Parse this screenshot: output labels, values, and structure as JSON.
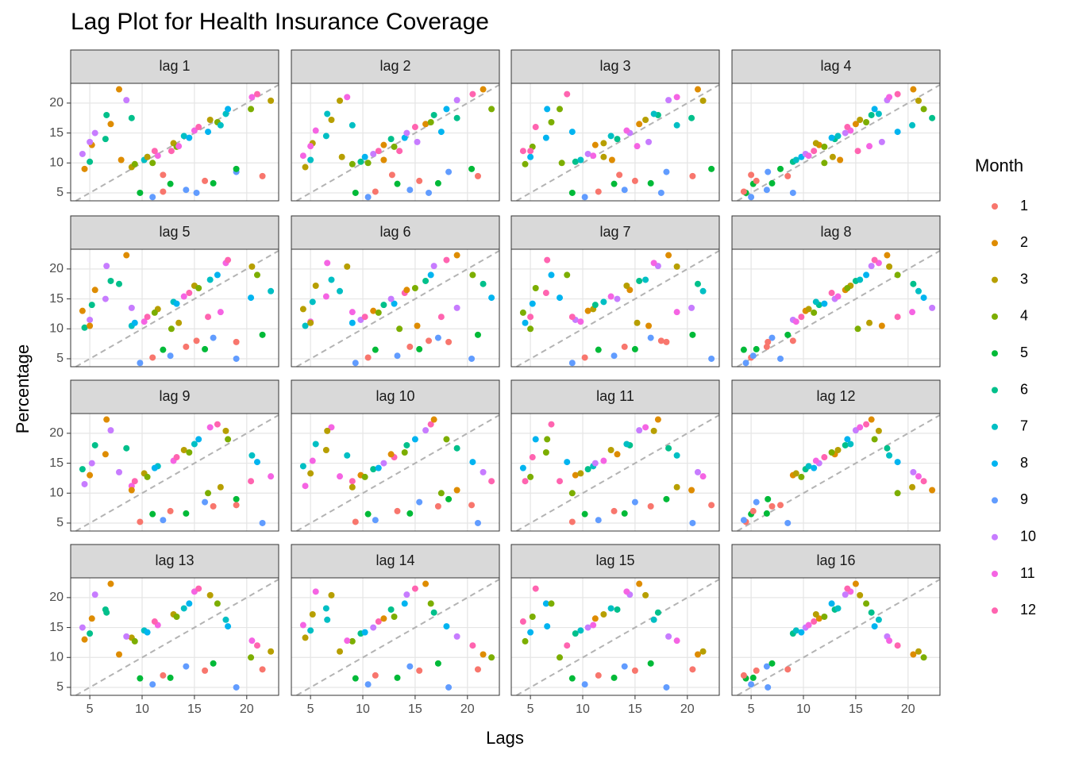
{
  "chart_data": {
    "type": "lag",
    "title": "Lag Plot for Health Insurance Coverage",
    "xlabel": "Lags",
    "ylabel": "Percentage",
    "legend_title": "Month",
    "legend": [
      {
        "month": 1,
        "color": "#F8766D"
      },
      {
        "month": 2,
        "color": "#DE8C00"
      },
      {
        "month": 3,
        "color": "#B79F00"
      },
      {
        "month": 4,
        "color": "#7CAE00"
      },
      {
        "month": 5,
        "color": "#00BA38"
      },
      {
        "month": 6,
        "color": "#00C08B"
      },
      {
        "month": 7,
        "color": "#00BFC4"
      },
      {
        "month": 8,
        "color": "#00B4F0"
      },
      {
        "month": 9,
        "color": "#619CFF"
      },
      {
        "month": 10,
        "color": "#C77CFF"
      },
      {
        "month": 11,
        "color": "#F564E3"
      },
      {
        "month": 12,
        "color": "#FF64B0"
      }
    ],
    "values": [
      4.5,
      9.0,
      9.3,
      9.8,
      5.0,
      10.2,
      10.5,
      11.0,
      4.3,
      11.5,
      11.2,
      12.0,
      5.2,
      13.0,
      13.3,
      12.7,
      6.5,
      14.0,
      14.5,
      14.2,
      5.5,
      15.0,
      15.4,
      16.0,
      7.0,
      16.5,
      17.2,
      16.8,
      6.6,
      18.0,
      18.2,
      19.0,
      8.5,
      20.5,
      21.0,
      21.5,
      7.8,
      22.3,
      20.4,
      19.0,
      9.0,
      17.5,
      16.3,
      15.2,
      5.0,
      13.5,
      12.8,
      12.0,
      8.0,
      10.5,
      11.0,
      10.0
    ],
    "months": [
      1,
      2,
      3,
      4,
      5,
      6,
      7,
      8,
      9,
      10,
      11,
      12,
      1,
      2,
      3,
      4,
      5,
      6,
      7,
      8,
      9,
      10,
      11,
      12,
      1,
      2,
      3,
      4,
      5,
      6,
      7,
      8,
      9,
      10,
      11,
      12,
      1,
      2,
      3,
      4,
      5,
      6,
      7,
      8,
      9,
      10,
      11,
      12,
      1,
      2,
      3,
      4
    ],
    "panels": [
      {
        "label": "lag 1",
        "lag": 1
      },
      {
        "label": "lag 2",
        "lag": 2
      },
      {
        "label": "lag 3",
        "lag": 3
      },
      {
        "label": "lag 4",
        "lag": 4
      },
      {
        "label": "lag 5",
        "lag": 5
      },
      {
        "label": "lag 6",
        "lag": 6
      },
      {
        "label": "lag 7",
        "lag": 7
      },
      {
        "label": "lag 8",
        "lag": 8
      },
      {
        "label": "lag 9",
        "lag": 9
      },
      {
        "label": "lag 10",
        "lag": 10
      },
      {
        "label": "lag 11",
        "lag": 11
      },
      {
        "label": "lag 12",
        "lag": 12
      },
      {
        "label": "lag 13",
        "lag": 13
      },
      {
        "label": "lag 14",
        "lag": 14
      },
      {
        "label": "lag 15",
        "lag": 15
      },
      {
        "label": "lag 16",
        "lag": 16
      }
    ],
    "xlim": [
      3.17,
      23.05
    ],
    "ylim": [
      3.67,
      23.3
    ],
    "xticks": [
      5,
      10,
      15,
      20
    ],
    "yticks": [
      5,
      10,
      15,
      20
    ],
    "grid": true,
    "reference_line": true
  }
}
